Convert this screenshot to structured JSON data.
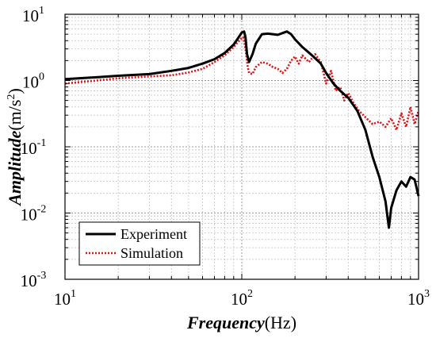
{
  "chart_data": {
    "type": "line",
    "xscale": "log",
    "yscale": "log",
    "xlim": [
      10,
      1000
    ],
    "ylim": [
      0.001,
      10
    ],
    "grid": true,
    "legend_position": "bottom-left",
    "x_ticks": [
      {
        "base": "10",
        "exp": "1"
      },
      {
        "base": "10",
        "exp": "2"
      },
      {
        "base": "10",
        "exp": "3"
      }
    ],
    "y_ticks": [
      {
        "base": "10",
        "exp": "-3"
      },
      {
        "base": "10",
        "exp": "-2"
      },
      {
        "base": "10",
        "exp": "-1"
      },
      {
        "base": "10",
        "exp": "0"
      },
      {
        "base": "10",
        "exp": "1"
      }
    ],
    "xlabel_main": "Frequency",
    "xlabel_unit": "(Hz)",
    "ylabel_main": "Amplitude",
    "ylabel_unit_pre": "(m/s",
    "ylabel_unit_exp": "2",
    "ylabel_unit_post": ")",
    "series": [
      {
        "name": "Experiment",
        "color": "#000000",
        "style": "solid",
        "x": [
          10,
          15,
          20,
          30,
          40,
          50,
          60,
          70,
          80,
          90,
          95,
          100,
          103,
          105,
          107,
          110,
          115,
          120,
          130,
          140,
          150,
          160,
          170,
          180,
          190,
          200,
          220,
          250,
          280,
          300,
          330,
          360,
          400,
          450,
          500,
          550,
          600,
          650,
          680,
          700,
          750,
          800,
          850,
          900,
          950,
          1000
        ],
        "y": [
          1.05,
          1.12,
          1.18,
          1.25,
          1.4,
          1.55,
          1.8,
          2.1,
          2.6,
          3.5,
          4.3,
          5.3,
          5.5,
          4.5,
          2.5,
          1.9,
          2.5,
          3.6,
          5.0,
          5.1,
          5.0,
          4.9,
          5.2,
          5.5,
          5.0,
          4.2,
          3.2,
          2.4,
          1.8,
          1.3,
          0.9,
          0.7,
          0.55,
          0.35,
          0.18,
          0.07,
          0.035,
          0.015,
          0.006,
          0.012,
          0.022,
          0.03,
          0.025,
          0.035,
          0.032,
          0.018
        ]
      },
      {
        "name": "Simulation",
        "color": "#e01010",
        "style": "dotted",
        "x": [
          10,
          15,
          20,
          30,
          40,
          50,
          60,
          70,
          80,
          90,
          95,
          100,
          102,
          105,
          108,
          110,
          115,
          120,
          130,
          140,
          150,
          160,
          170,
          180,
          190,
          200,
          210,
          220,
          240,
          260,
          280,
          300,
          320,
          340,
          360,
          380,
          400,
          430,
          460,
          500,
          550,
          600,
          650,
          700,
          750,
          800,
          850,
          900,
          950,
          1000
        ],
        "y": [
          0.9,
          1.0,
          1.08,
          1.15,
          1.2,
          1.32,
          1.5,
          1.9,
          2.4,
          3.2,
          3.8,
          4.4,
          4.5,
          3.0,
          1.6,
          1.3,
          1.25,
          1.6,
          1.9,
          1.8,
          1.6,
          1.5,
          1.3,
          1.5,
          2.0,
          2.3,
          1.8,
          2.4,
          1.9,
          2.5,
          1.9,
          0.9,
          1.4,
          0.7,
          0.8,
          0.5,
          0.65,
          0.45,
          0.35,
          0.28,
          0.22,
          0.24,
          0.2,
          0.27,
          0.18,
          0.32,
          0.2,
          0.4,
          0.22,
          0.35
        ]
      }
    ]
  }
}
